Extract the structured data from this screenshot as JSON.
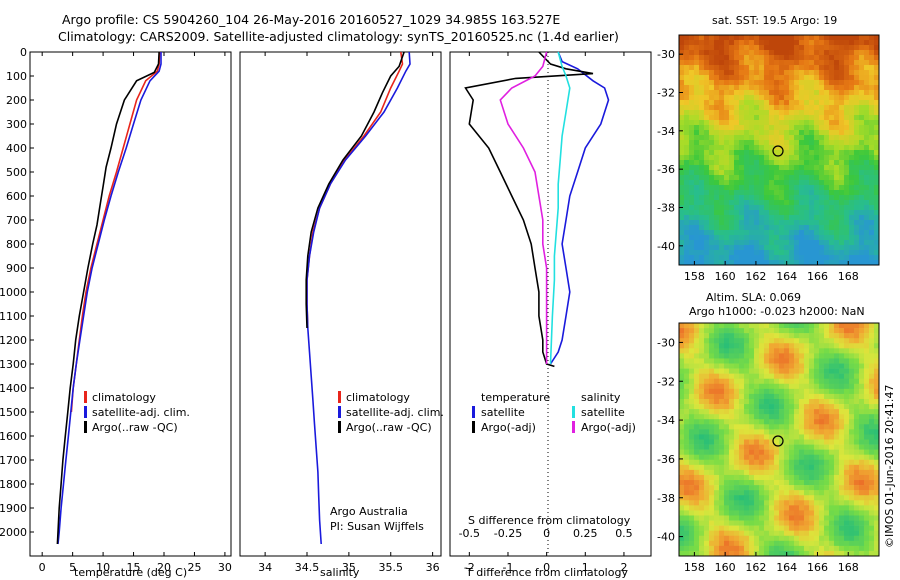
{
  "header": {
    "line1": "Argo profile: CS 5904260_104 26-May-2016 20160527_1029 34.985S 163.527E",
    "line2": "Climatology: CARS2009. Satellite-adjusted climatology: synTS_20160525.nc (1.4d earlier)"
  },
  "colors": {
    "climatology": "#e8251b",
    "satellite": "#1a1adc",
    "argo": "#000000",
    "sat_salinity": "#22e0e0",
    "argo_adj_salinity": "#e020e0"
  },
  "chart_data": [
    {
      "type": "line",
      "id": "temperature",
      "xlabel": "temperature (deg C)",
      "xlim": [
        -2,
        31
      ],
      "ylim": [
        0,
        2100
      ],
      "xticks": [
        "0",
        "5",
        "10",
        "15",
        "20",
        "25",
        "30"
      ],
      "yticks": [
        "0",
        "100",
        "200",
        "300",
        "400",
        "500",
        "600",
        "700",
        "800",
        "900",
        "1000",
        "1100",
        "1200",
        "1300",
        "1400",
        "1500",
        "1600",
        "1700",
        "1800",
        "1900",
        "2000"
      ],
      "legend": [
        "climatology",
        "satellite-adj. clim.",
        "Argo(..raw -QC)"
      ],
      "series": [
        {
          "name": "climatology",
          "color": "#e8251b",
          "x": [
            19.3,
            19.2,
            18.9,
            17,
            15.5,
            14.4,
            13.3,
            12.2,
            11,
            10,
            9,
            8,
            7.2,
            6.6,
            6.1,
            5.6,
            5.1,
            4.8
          ],
          "y": [
            0,
            50,
            80,
            120,
            200,
            300,
            400,
            500,
            600,
            700,
            800,
            900,
            1000,
            1100,
            1200,
            1300,
            1400,
            1500
          ]
        },
        {
          "name": "satellite-adj. clim.",
          "color": "#1a1adc",
          "x": [
            19.5,
            19.5,
            19.2,
            17.7,
            16.2,
            15,
            13.8,
            12.5,
            11.3,
            10.2,
            9.2,
            8.2,
            7.4,
            6.8,
            6.2,
            5.6,
            5.1,
            4.7,
            4.3,
            3.9,
            3.5,
            3.1,
            2.8,
            2.6
          ],
          "y": [
            0,
            50,
            80,
            120,
            200,
            300,
            400,
            500,
            600,
            700,
            800,
            900,
            1000,
            1100,
            1200,
            1300,
            1400,
            1500,
            1600,
            1700,
            1800,
            1900,
            2000,
            2050
          ]
        },
        {
          "name": "Argo(..raw -QC)",
          "color": "#000000",
          "x": [
            19.2,
            19.1,
            18.4,
            15.5,
            13.5,
            12.2,
            11.3,
            10.5,
            10,
            9.5,
            9,
            8.3,
            7.5,
            6.8,
            6.1,
            5.5,
            5.1,
            4.6,
            4.2,
            3.8,
            3.4,
            3.1,
            2.8,
            2.5
          ],
          "y": [
            0,
            50,
            85,
            120,
            200,
            300,
            400,
            480,
            560,
            640,
            720,
            800,
            900,
            1000,
            1100,
            1200,
            1300,
            1400,
            1500,
            1600,
            1700,
            1800,
            1900,
            2050
          ]
        }
      ]
    },
    {
      "type": "line",
      "id": "salinity",
      "xlabel": "salinity",
      "xlim": [
        33.7,
        36.1
      ],
      "ylim": [
        0,
        2100
      ],
      "xticks": [
        "34",
        "34.5",
        "35",
        "35.5",
        "36"
      ],
      "legend": [
        "climatology",
        "satellite-adj. clim.",
        "Argo(..raw -QC)"
      ],
      "annotation": [
        "Argo Australia",
        "PI: Susan Wijffels"
      ],
      "series": [
        {
          "name": "climatology",
          "color": "#e8251b",
          "x": [
            35.62,
            35.64,
            35.6,
            35.5,
            35.38,
            35.18,
            34.95,
            34.78,
            34.65,
            34.57,
            34.53,
            34.5,
            34.5,
            34.51
          ],
          "y": [
            0,
            50,
            80,
            150,
            250,
            350,
            450,
            550,
            650,
            750,
            850,
            950,
            1050,
            1150
          ]
        },
        {
          "name": "satellite-adj. clim.",
          "color": "#1a1adc",
          "x": [
            35.72,
            35.73,
            35.68,
            35.58,
            35.42,
            35.2,
            34.96,
            34.78,
            34.65,
            34.58,
            34.53,
            34.5,
            34.5,
            34.51,
            34.53,
            34.55,
            34.57,
            34.59,
            34.61,
            34.63,
            34.64,
            34.65,
            34.66,
            34.67
          ],
          "y": [
            0,
            50,
            80,
            150,
            250,
            350,
            450,
            550,
            650,
            750,
            850,
            950,
            1050,
            1150,
            1250,
            1350,
            1450,
            1550,
            1650,
            1750,
            1850,
            1950,
            2000,
            2050
          ]
        },
        {
          "name": "Argo(..raw -QC)",
          "color": "#000000",
          "x": [
            35.66,
            35.6,
            35.5,
            35.4,
            35.3,
            35.15,
            34.93,
            34.76,
            34.63,
            34.55,
            34.51,
            34.49,
            34.49,
            34.5
          ],
          "y": [
            0,
            60,
            100,
            170,
            250,
            350,
            450,
            550,
            650,
            750,
            850,
            950,
            1050,
            1150
          ]
        }
      ]
    },
    {
      "type": "line",
      "id": "difference",
      "xlabel": "T difference from climatology",
      "xlabel_top": "S difference from climatology",
      "xlim": [
        -2.5,
        2.7
      ],
      "ylim": [
        0,
        2100
      ],
      "xticks": [
        "-2",
        "-1",
        "0",
        "1",
        "2"
      ],
      "xticks_top": [
        "-0.5",
        "-0.25",
        "0",
        "0.25",
        "0.5"
      ],
      "legend_left": {
        "title": "temperature",
        "items": [
          "satellite",
          "Argo(-adj)"
        ]
      },
      "legend_right": {
        "title": "salinity",
        "items": [
          "satellite",
          "Argo(-adj)"
        ]
      },
      "series": [
        {
          "name": "T satellite",
          "color": "#1a1adc",
          "x": [
            0.3,
            0.4,
            0.8,
            1.2,
            1.5,
            1.6,
            1.4,
            1.0,
            0.8,
            0.6,
            0.5,
            0.4,
            0.5,
            0.6,
            0.5,
            0.4,
            0.3,
            0.1
          ],
          "y": [
            0,
            40,
            70,
            120,
            150,
            200,
            300,
            400,
            500,
            600,
            700,
            800,
            900,
            1000,
            1100,
            1200,
            1250,
            1300
          ]
        },
        {
          "name": "T Argo(-adj)",
          "color": "#000000",
          "x": [
            -0.2,
            0.1,
            0.5,
            1.2,
            -0.8,
            -2.1,
            -1.9,
            -2.0,
            -1.5,
            -1.2,
            -0.9,
            -0.6,
            -0.4,
            -0.3,
            -0.2,
            -0.2,
            -0.1,
            -0.1,
            0,
            0.2
          ],
          "y": [
            0,
            50,
            70,
            90,
            110,
            150,
            200,
            300,
            400,
            500,
            600,
            700,
            800,
            900,
            1000,
            1100,
            1200,
            1250,
            1300,
            1310
          ]
        },
        {
          "name": "S satellite",
          "color": "#22e0e0",
          "x": [
            0.3,
            0.4,
            0.5,
            0.6,
            0.5,
            0.4,
            0.35,
            0.3,
            0.3,
            0.25,
            0.2,
            0.2,
            0.15,
            0.1
          ],
          "y": [
            0,
            60,
            100,
            150,
            250,
            350,
            450,
            550,
            650,
            750,
            850,
            950,
            1100,
            1300
          ]
        },
        {
          "name": "S Argo(-adj)",
          "color": "#e020e0",
          "x": [
            0,
            -0.1,
            -0.3,
            -0.9,
            -1.2,
            -1.0,
            -0.6,
            -0.3,
            -0.2,
            -0.1,
            -0.1,
            0,
            0,
            0
          ],
          "y": [
            0,
            60,
            100,
            150,
            200,
            300,
            400,
            500,
            600,
            700,
            800,
            900,
            1100,
            1300
          ]
        }
      ]
    },
    {
      "type": "heatmap",
      "id": "sst_map",
      "title": "sat. SST: 19.5 Argo: 19",
      "xticks": [
        "158",
        "160",
        "162",
        "164",
        "166",
        "168"
      ],
      "yticks": [
        "-30",
        "-32",
        "-34",
        "-36",
        "-38",
        "-40"
      ],
      "xlim": [
        157,
        170
      ],
      "ylim": [
        -41,
        -29
      ],
      "marker": {
        "lon": 163.5,
        "lat": -35
      }
    },
    {
      "type": "heatmap",
      "id": "sla_map",
      "title_line1": "Altim. SLA: 0.069",
      "title_line2": "Argo h1000: -0.023 h2000: NaN",
      "xticks": [
        "158",
        "160",
        "162",
        "164",
        "166",
        "168"
      ],
      "yticks": [
        "-30",
        "-32",
        "-34",
        "-36",
        "-38",
        "-40"
      ],
      "xlim": [
        157,
        170
      ],
      "ylim": [
        -41,
        -29
      ],
      "marker": {
        "lon": 163.5,
        "lat": -35
      }
    }
  ],
  "side_label": "©IMOS 01-Jun-2016 20:41:47"
}
